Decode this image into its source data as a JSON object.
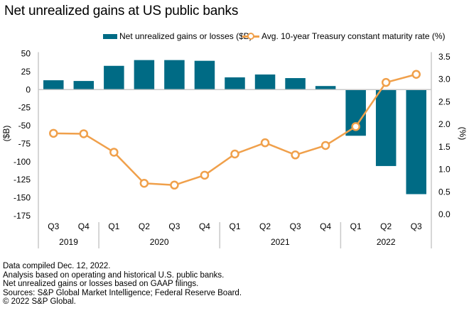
{
  "chart_data": {
    "type": "bar+line",
    "title": "Net unrealized gains at US public banks",
    "categories": [
      "Q3",
      "Q4",
      "Q1",
      "Q2",
      "Q3",
      "Q4",
      "Q1",
      "Q2",
      "Q3",
      "Q4",
      "Q1",
      "Q2",
      "Q3"
    ],
    "groups": [
      {
        "label": "2019",
        "count": 2
      },
      {
        "label": "2020",
        "count": 4
      },
      {
        "label": "2021",
        "count": 4
      },
      {
        "label": "2022",
        "count": 3
      }
    ],
    "series": [
      {
        "name": "Net unrealized gains or losses ($B)",
        "type": "bar",
        "axis": "left",
        "color": "#006b85",
        "values": [
          13,
          12,
          33,
          41,
          41,
          40,
          17,
          21,
          16,
          5,
          -64,
          -106,
          -145
        ]
      },
      {
        "name": "Avg. 10-year Treasury constant maturity rate (%)",
        "type": "line",
        "axis": "right",
        "color": "#f0a04b",
        "values": [
          1.8,
          1.79,
          1.38,
          0.69,
          0.65,
          0.87,
          1.34,
          1.59,
          1.32,
          1.53,
          1.95,
          2.93,
          3.11
        ]
      }
    ],
    "ylabel": "($B)",
    "ylim": [
      -175,
      50
    ],
    "yticks": [
      "50",
      "25",
      "0",
      "-25",
      "-50",
      "-75",
      "-100",
      "-125",
      "-150",
      "-175"
    ],
    "ytick_values": [
      50,
      25,
      0,
      -25,
      -50,
      -75,
      -100,
      -125,
      -150,
      -175
    ],
    "y2label": "(%)",
    "y2lim": [
      0,
      3.5
    ],
    "y2ticks": [
      "3.5",
      "3.0",
      "2.5",
      "2.0",
      "1.5",
      "1.0",
      "0.5",
      "0.0"
    ],
    "y2tick_values": [
      3.5,
      3.0,
      2.5,
      2.0,
      1.5,
      1.0,
      0.5,
      0.0
    ],
    "legend": "top-center",
    "grid": false
  },
  "legend": {
    "bar_label": "Net unrealized gains or losses ($B)",
    "line_label": "Avg. 10-year Treasury constant maturity rate (%)"
  },
  "notes": [
    "Data compiled Dec. 12, 2022.",
    "Analysis based on operating and historical U.S. public banks.",
    "Net unrealized gains or losses based on GAAP filings.",
    "Sources: S&P Global Market Intelligence; Federal Reserve Board.",
    "© 2022 S&P Global."
  ]
}
